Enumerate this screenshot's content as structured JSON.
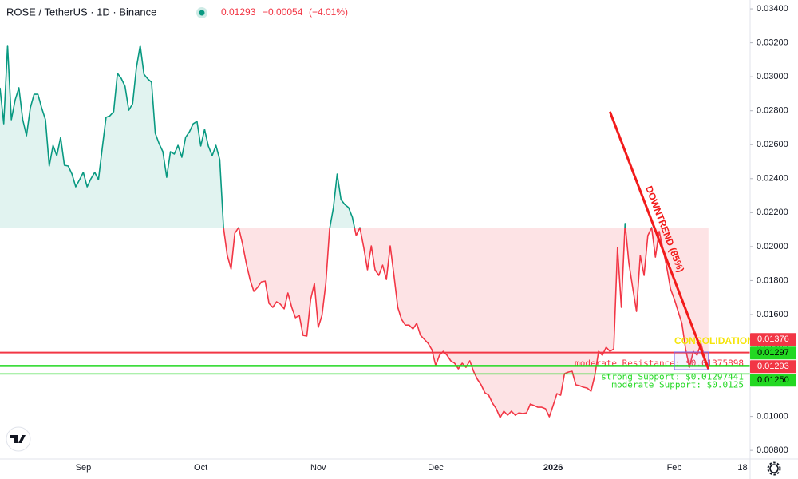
{
  "chart_data": {
    "type": "line",
    "header": {
      "symbol": "ROSE / TetherUS · 1D · Binance",
      "price": "0.01293",
      "change": "−0.00054",
      "change_pct": "(−4.01%)"
    },
    "categories": [
      null,
      null,
      null,
      null,
      null,
      null,
      null,
      null,
      null,
      null,
      null,
      null,
      null,
      null,
      null,
      null,
      null,
      null,
      null,
      null,
      null,
      null,
      "Sep",
      null,
      null,
      null,
      null,
      null,
      null,
      null,
      null,
      null,
      null,
      null,
      null,
      null,
      null,
      null,
      null,
      null,
      null,
      null,
      null,
      null,
      null,
      null,
      null,
      null,
      null,
      null,
      null,
      null,
      null,
      "Oct",
      null,
      null,
      null,
      null,
      null,
      null,
      null,
      null,
      null,
      null,
      null,
      null,
      null,
      null,
      null,
      null,
      null,
      null,
      null,
      null,
      null,
      null,
      null,
      null,
      null,
      null,
      null,
      null,
      null,
      null,
      "Nov",
      null,
      null,
      null,
      null,
      null,
      null,
      null,
      null,
      null,
      null,
      null,
      null,
      null,
      null,
      null,
      null,
      null,
      null,
      null,
      null,
      null,
      null,
      null,
      null,
      null,
      null,
      null,
      null,
      null,
      null,
      "Dec",
      null,
      null,
      null,
      null,
      null,
      null,
      null,
      null,
      null,
      null,
      null,
      null,
      null,
      null,
      null,
      null,
      null,
      null,
      null,
      null,
      null,
      null,
      null,
      null,
      null,
      null,
      null,
      null,
      null,
      null,
      "2026",
      null,
      null,
      null,
      null,
      null,
      null,
      null,
      null,
      null,
      null,
      null,
      null,
      null,
      null,
      null,
      null,
      null,
      null,
      null,
      null,
      null,
      null,
      null,
      null,
      null,
      null,
      null,
      null,
      null,
      null,
      null,
      "Feb",
      null,
      null,
      null,
      null,
      null,
      null,
      null,
      null,
      null,
      null,
      null,
      null,
      null,
      null,
      null,
      null,
      null,
      "18",
      null,
      null
    ],
    "values": [
      0.02935,
      0.02723,
      0.03184,
      0.02747,
      0.02864,
      0.02935,
      0.02747,
      0.02653,
      0.02817,
      0.02897,
      0.02897,
      0.02817,
      0.02747,
      0.02474,
      0.02596,
      0.02535,
      0.02643,
      0.02479,
      0.02474,
      0.02427,
      0.02352,
      0.02394,
      0.02437,
      0.02352,
      0.02399,
      0.02437,
      0.02394,
      0.02582,
      0.02761,
      0.0277,
      0.02794,
      0.0302,
      0.02991,
      0.02944,
      0.02803,
      0.02841,
      0.03052,
      0.03184,
      0.03015,
      0.02987,
      0.02968,
      0.02667,
      0.02606,
      0.02559,
      0.02408,
      0.02559,
      0.02545,
      0.02596,
      0.02526,
      0.02643,
      0.02676,
      0.02723,
      0.02737,
      0.02592,
      0.0269,
      0.02592,
      0.02535,
      0.02596,
      0.02512,
      0.02112,
      0.01948,
      0.01868,
      0.02079,
      0.02112,
      0.02018,
      0.01901,
      0.01806,
      0.01736,
      0.01759,
      0.01792,
      0.01797,
      0.01665,
      0.01642,
      0.01675,
      0.01661,
      0.01633,
      0.01727,
      0.01642,
      0.01581,
      0.01595,
      0.01477,
      0.01473,
      0.01689,
      0.01783,
      0.01524,
      0.01595,
      0.01783,
      0.02103,
      0.0223,
      0.02427,
      0.02277,
      0.02248,
      0.0223,
      0.02173,
      0.02065,
      0.02112,
      0.01995,
      0.01863,
      0.02004,
      0.01863,
      0.0183,
      0.01891,
      0.01806,
      0.02004,
      0.0183,
      0.01642,
      0.01571,
      0.01538,
      0.01538,
      0.01515,
      0.01548,
      0.01477,
      0.01454,
      0.0143,
      0.01393,
      0.01299,
      0.0136,
      0.01383,
      0.0136,
      0.01327,
      0.01313,
      0.0128,
      0.01313,
      0.01289,
      0.01327,
      0.01266,
      0.01219,
      0.01186,
      0.01139,
      0.01125,
      0.01078,
      0.01045,
      0.00993,
      0.01031,
      0.01007,
      0.01031,
      0.01007,
      0.01021,
      0.01017,
      0.01021,
      0.01073,
      0.01064,
      0.01054,
      0.01054,
      0.01045,
      0.00998,
      0.01064,
      0.01134,
      0.01125,
      0.01252,
      0.01261,
      0.01266,
      0.01186,
      0.01181,
      0.01172,
      0.01167,
      0.01148,
      0.01242,
      0.01383,
      0.0136,
      0.01407,
      0.01383,
      0.01397,
      0.01995,
      0.01642,
      0.02136,
      0.01901,
      0.01759,
      0.01618,
      0.01948,
      0.0183,
      0.02065,
      0.02112,
      0.01938,
      0.02089,
      0.01985,
      0.01877,
      0.0175,
      0.01689,
      0.01618,
      0.01548,
      0.01393,
      0.01289,
      0.01383,
      0.0136,
      0.0143,
      0.01346,
      0.01293,
      null,
      null,
      null,
      null,
      null,
      null,
      null,
      null,
      null,
      null,
      null
    ],
    "baseline": 0.0211,
    "up_color": "#089981",
    "down_color": "#f23645",
    "ylim": [
      0.00749,
      0.03452
    ],
    "yticks": [
      {
        "value": 0.034,
        "label": "0.03400"
      },
      {
        "value": 0.032,
        "label": "0.03200"
      },
      {
        "value": 0.03,
        "label": "0.03000"
      },
      {
        "value": 0.028,
        "label": "0.02800"
      },
      {
        "value": 0.026,
        "label": "0.02600"
      },
      {
        "value": 0.024,
        "label": "0.02400"
      },
      {
        "value": 0.022,
        "label": "0.02200"
      },
      {
        "value": 0.02,
        "label": "0.02000"
      },
      {
        "value": 0.018,
        "label": "0.01800"
      },
      {
        "value": 0.016,
        "label": "0.01600"
      },
      {
        "value": 0.014,
        "label": "0.01400"
      },
      {
        "value": 0.012,
        "label": "0.01200"
      },
      {
        "value": 0.01,
        "label": "0.01000"
      },
      {
        "value": 0.008,
        "label": "0.00800"
      }
    ],
    "grid": false,
    "levels": [
      {
        "label": "moderate Resistance: $0.01375898",
        "value": 0.01375898,
        "tag": "0.01376",
        "color": "#f23645",
        "width": 2
      },
      {
        "label": "strong Support: $0.01297441",
        "value": 0.01297441,
        "tag": "0.01297",
        "color": "#22d822",
        "width": 2.5
      },
      {
        "label": "moderate Support: $0.0125",
        "value": 0.0125,
        "tag": "0.01250",
        "color": "#22d822",
        "width": 1.5
      }
    ],
    "trendline": {
      "label": "DOWNTREND (85%)",
      "start": [
        161,
        0.02794
      ],
      "end": [
        187,
        0.0128
      ],
      "color": "#f21b1b"
    },
    "consolidation": {
      "label": "CONSOLIDATION",
      "x": [
        178,
        187
      ],
      "y": [
        0.01275,
        0.01379
      ],
      "color": "#f5e50a"
    }
  }
}
